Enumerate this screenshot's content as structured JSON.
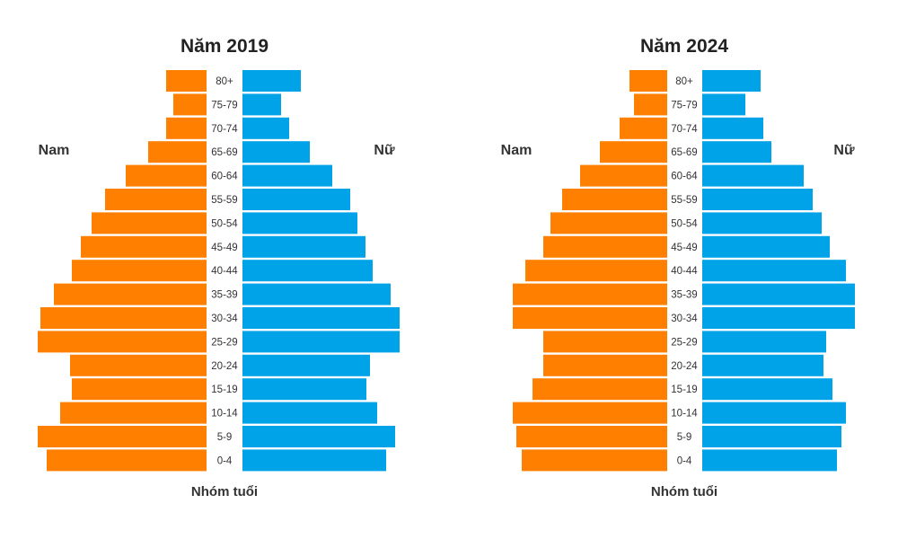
{
  "chart_data": [
    {
      "type": "bar",
      "orientation": "horizontal-population-pyramid",
      "title": "Năm 2019",
      "xlabel": "Nhóm tuổi",
      "left_label": "Nam",
      "right_label": "Nữ",
      "categories": [
        "0-4",
        "5-9",
        "10-14",
        "15-19",
        "20-24",
        "25-29",
        "30-34",
        "35-39",
        "40-44",
        "45-49",
        "50-54",
        "55-59",
        "60-64",
        "65-69",
        "70-74",
        "75-79",
        "80+"
      ],
      "series": [
        {
          "name": "Nam",
          "color": "#FF7F00",
          "values": [
            178,
            188,
            163,
            150,
            152,
            188,
            185,
            170,
            150,
            140,
            128,
            113,
            90,
            65,
            45,
            37,
            45
          ]
        },
        {
          "name": "Nữ",
          "color": "#00A2E8",
          "values": [
            160,
            170,
            150,
            138,
            142,
            175,
            175,
            165,
            145,
            137,
            128,
            120,
            100,
            75,
            52,
            43,
            65
          ]
        }
      ],
      "axis_max": 190
    },
    {
      "type": "bar",
      "orientation": "horizontal-population-pyramid",
      "title": "Năm 2024",
      "xlabel": "Nhóm tuổi",
      "left_label": "Nam",
      "right_label": "Nữ",
      "categories": [
        "0-4",
        "5-9",
        "10-14",
        "15-19",
        "20-24",
        "25-29",
        "30-34",
        "35-39",
        "40-44",
        "45-49",
        "50-54",
        "55-59",
        "60-64",
        "65-69",
        "70-74",
        "75-79",
        "80+"
      ],
      "series": [
        {
          "name": "Nam",
          "color": "#FF7F00",
          "values": [
            162,
            168,
            172,
            150,
            138,
            138,
            172,
            172,
            158,
            138,
            130,
            117,
            97,
            75,
            53,
            37,
            42
          ]
        },
        {
          "name": "Nữ",
          "color": "#00A2E8",
          "values": [
            150,
            155,
            160,
            145,
            135,
            138,
            170,
            170,
            160,
            142,
            133,
            123,
            113,
            77,
            68,
            48,
            65
          ]
        }
      ],
      "axis_max": 190
    }
  ]
}
